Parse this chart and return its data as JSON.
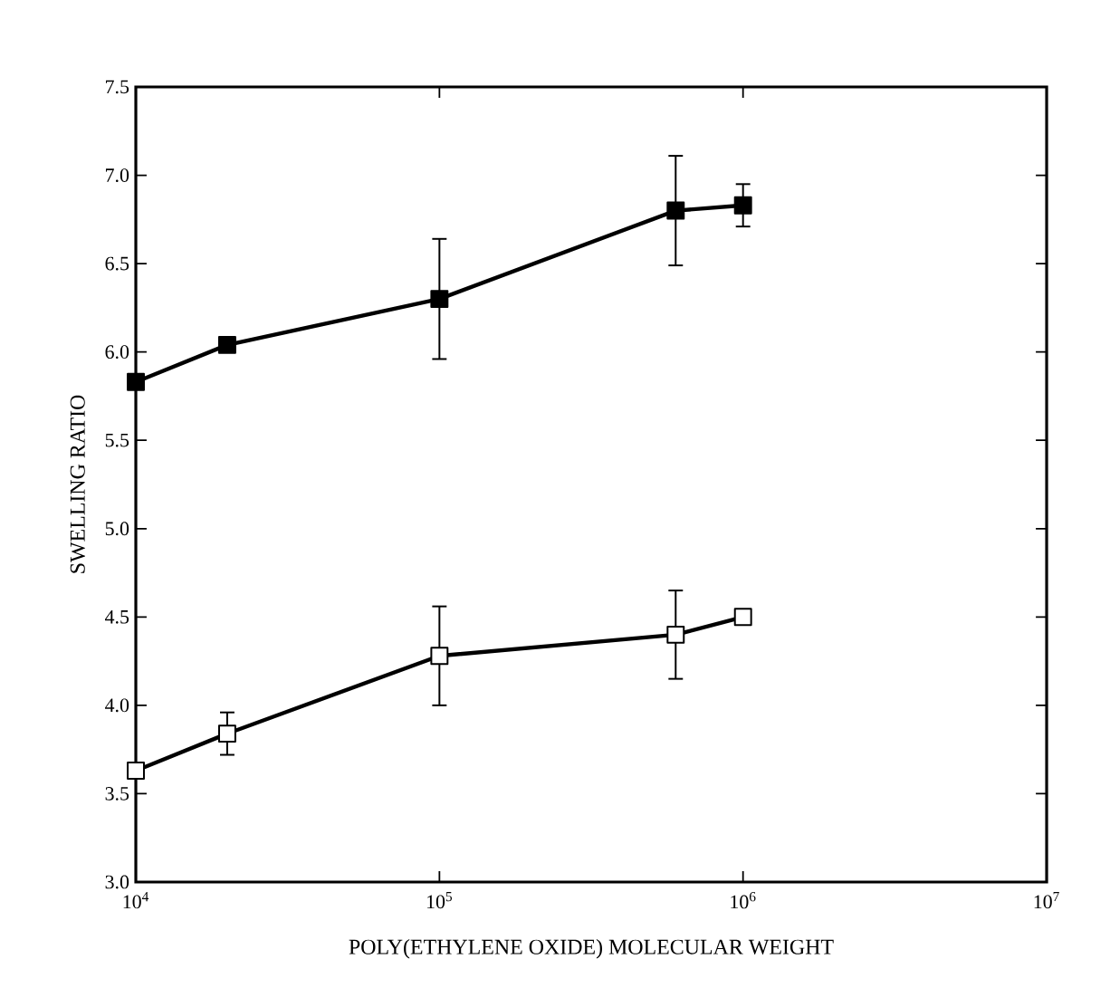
{
  "chart_data": {
    "type": "line",
    "xlabel": "POLY(ETHYLENE OXIDE) MOLECULAR WEIGHT",
    "ylabel": "SWELLING RATIO",
    "log": "x",
    "xlim": [
      10000,
      10000000
    ],
    "ylim": [
      3.0,
      7.5
    ],
    "xticks": [
      {
        "value": 10000,
        "label": "10$^{4}$"
      },
      {
        "value": 100000,
        "label": "10$^{5}$"
      },
      {
        "value": 1000000,
        "label": "10$^{6}$"
      },
      {
        "value": 10000000,
        "label": "10$^{7}$"
      }
    ],
    "yticks": [
      {
        "value": 3.0,
        "label": "3.0"
      },
      {
        "value": 3.5,
        "label": "3.5"
      },
      {
        "value": 4.0,
        "label": "4.0"
      },
      {
        "value": 4.5,
        "label": "4.5"
      },
      {
        "value": 5.0,
        "label": "5.0"
      },
      {
        "value": 5.5,
        "label": "5.5"
      },
      {
        "value": 6.0,
        "label": "6.0"
      },
      {
        "value": 6.5,
        "label": "6.5"
      },
      {
        "value": 7.0,
        "label": "7.0"
      },
      {
        "value": 7.5,
        "label": "7.5"
      }
    ],
    "x": [
      10000,
      20000,
      100000,
      600000,
      1000000
    ],
    "marker": "square",
    "line_style": "solid",
    "grid": false,
    "series": [
      {
        "color": "#000000",
        "values": [
          5.83,
          6.04,
          6.3,
          6.8,
          6.83
        ],
        "errors": [
          null,
          null,
          0.34,
          0.31,
          0.12
        ]
      },
      {
        "color": "#ffffff",
        "values": [
          3.63,
          3.84,
          4.28,
          4.4,
          4.5
        ],
        "errors": [
          null,
          0.12,
          0.28,
          0.25,
          null
        ]
      }
    ]
  }
}
